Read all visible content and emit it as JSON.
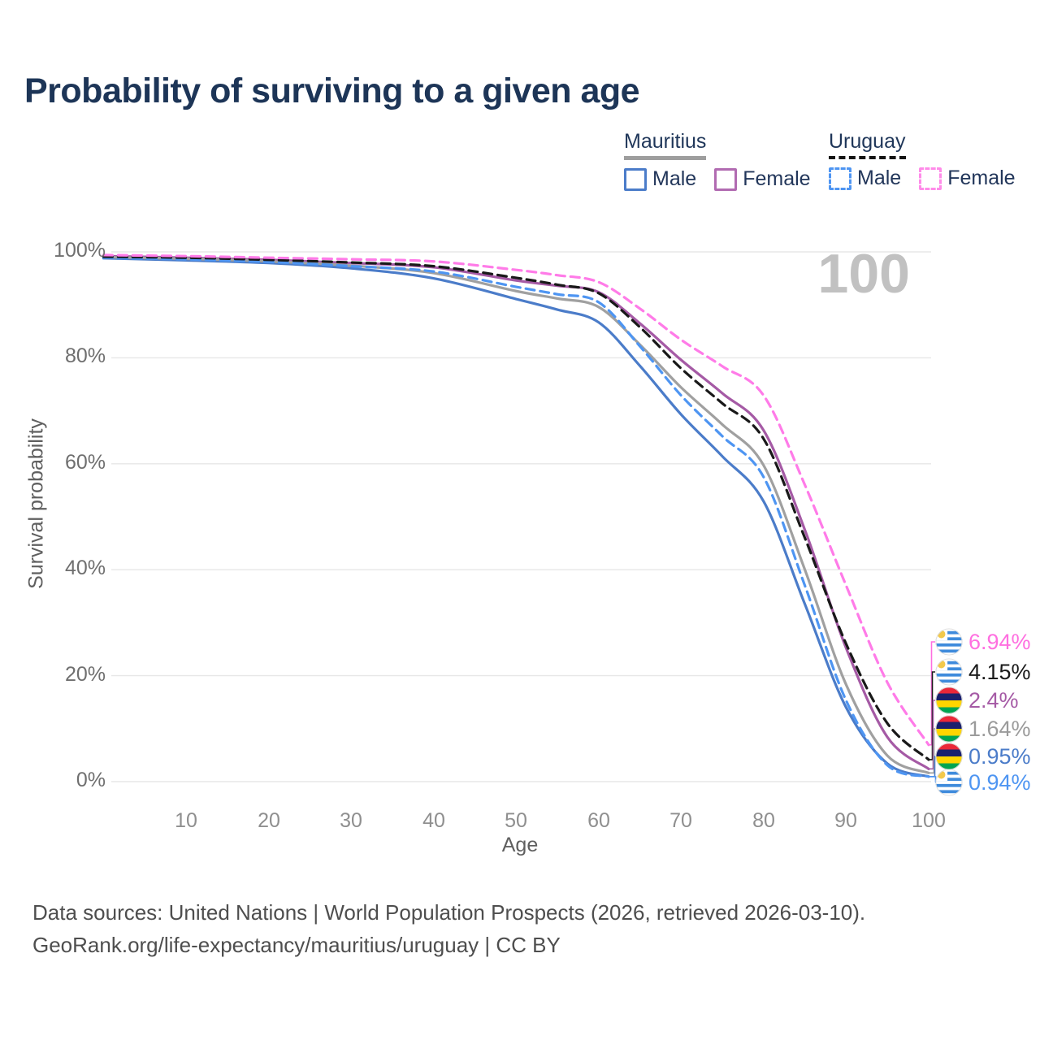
{
  "title": "Probability of surviving to a given age",
  "watermark": "100",
  "legend": {
    "groups": [
      {
        "header": "Mauritius",
        "items": [
          {
            "label": "Male"
          },
          {
            "label": "Female"
          }
        ]
      },
      {
        "header": "Uruguay",
        "items": [
          {
            "label": "Male"
          },
          {
            "label": "Female"
          }
        ]
      }
    ]
  },
  "axes": {
    "y_title": "Survival probability",
    "x_title": "Age",
    "y_ticks": [
      "100%",
      "80%",
      "60%",
      "40%",
      "20%",
      "0%"
    ],
    "x_ticks": [
      "10",
      "20",
      "30",
      "40",
      "50",
      "60",
      "70",
      "80",
      "90",
      "100"
    ]
  },
  "end_labels": [
    {
      "series": "uruguay-female",
      "label": "6.94%",
      "flag": "uruguay",
      "color": "#ff6fe0"
    },
    {
      "series": "uruguay",
      "label": "4.15%",
      "flag": "uruguay",
      "color": "#1a1a1a"
    },
    {
      "series": "mauritius-female",
      "label": "2.4%",
      "flag": "mauritius",
      "color": "#a55aa5"
    },
    {
      "series": "mauritius",
      "label": "1.64%",
      "flag": "mauritius",
      "color": "#9b9b9b"
    },
    {
      "series": "mauritius-male",
      "label": "0.95%",
      "flag": "mauritius",
      "color": "#4b7cc9"
    },
    {
      "series": "uruguay-male",
      "label": "0.94%",
      "flag": "uruguay",
      "color": "#4e95f2"
    }
  ],
  "footer": {
    "line1": "Data sources: United Nations | World Population Prospects (2026, retrieved 2026-03-10).",
    "line2": "GeoRank.org/life-expectancy/mauritius/uruguay | CC BY"
  },
  "chart_data": {
    "type": "line",
    "title": "Probability of surviving to a given age",
    "xlabel": "Age",
    "ylabel": "Survival probability",
    "xlim": [
      0,
      100
    ],
    "ylim": [
      0,
      100
    ],
    "grid": "horizontal",
    "legend_position": "top-right",
    "x": [
      0,
      10,
      20,
      30,
      40,
      50,
      55,
      60,
      65,
      70,
      75,
      80,
      85,
      90,
      95,
      100
    ],
    "series": [
      {
        "id": "mauritius-male",
        "name": "Mauritius Male",
        "country": "Mauritius",
        "sex": "Male",
        "line_style": "solid",
        "color": "#4b7cc9",
        "values": [
          98.8,
          98.4,
          97.9,
          96.9,
          95.0,
          91.1,
          89.1,
          86.7,
          78.5,
          69.3,
          61.4,
          52.9,
          33.5,
          14.0,
          3.4,
          0.95
        ],
        "end_label": "0.95%"
      },
      {
        "id": "mauritius-female",
        "name": "Mauritius Female",
        "country": "Mauritius",
        "sex": "Female",
        "line_style": "solid",
        "color": "#a55aa5",
        "values": [
          99.2,
          98.9,
          98.5,
          97.9,
          97.1,
          94.6,
          93.6,
          92.4,
          86.5,
          79.6,
          73.3,
          66.3,
          47.5,
          25.2,
          8.4,
          2.4
        ],
        "end_label": "2.4%"
      },
      {
        "id": "mauritius",
        "name": "Mauritius",
        "country": "Mauritius",
        "sex": "Both",
        "line_style": "solid",
        "color": "#a0a0a0",
        "values": [
          99.0,
          98.7,
          98.2,
          97.4,
          96.0,
          92.6,
          91.2,
          89.6,
          82.5,
          74.4,
          67.4,
          59.7,
          40.0,
          18.3,
          4.9,
          1.64
        ],
        "end_label": "1.64%"
      },
      {
        "id": "uruguay-male",
        "name": "Uruguay Male",
        "country": "Uruguay",
        "sex": "Male",
        "line_style": "dashed",
        "color": "#4e95f2",
        "values": [
          98.9,
          98.6,
          98.1,
          97.3,
          96.3,
          93.4,
          92.0,
          90.5,
          82.2,
          72.9,
          65.2,
          57.5,
          37.0,
          15.3,
          3.1,
          0.94
        ],
        "end_label": "0.94%"
      },
      {
        "id": "uruguay",
        "name": "Uruguay",
        "country": "Uruguay",
        "sex": "Both",
        "line_style": "dashed",
        "color": "#191919",
        "values": [
          99.1,
          98.9,
          98.5,
          98.0,
          97.3,
          95.1,
          93.8,
          92.2,
          85.8,
          78.0,
          71.4,
          64.7,
          46.0,
          26.0,
          11.0,
          4.15
        ],
        "end_label": "4.15%"
      },
      {
        "id": "uruguay-female",
        "name": "Uruguay Female",
        "country": "Uruguay",
        "sex": "Female",
        "line_style": "dashed",
        "color": "#ff7be8",
        "values": [
          99.4,
          99.2,
          98.9,
          98.6,
          98.2,
          96.6,
          95.6,
          94.3,
          89.3,
          83.4,
          78.4,
          72.9,
          56.0,
          37.0,
          18.7,
          6.94
        ],
        "end_label": "6.94%"
      }
    ]
  }
}
